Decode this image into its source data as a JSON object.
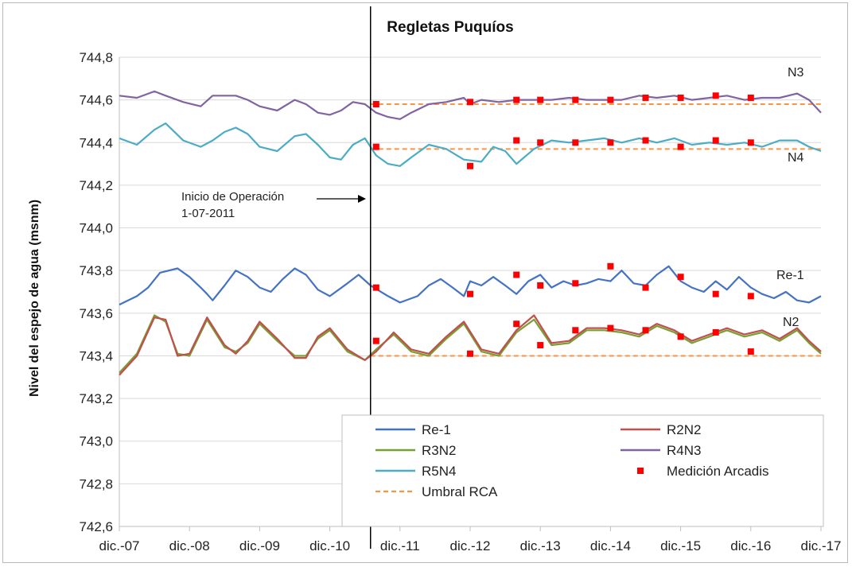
{
  "chart_data": {
    "type": "line",
    "title": "Regletas Puquíos",
    "ylabel": "Nivel del espejo de agua (msnm)",
    "xlabel": "",
    "ylim": [
      742.6,
      744.8
    ],
    "yticks": [
      "744,8",
      "744,6",
      "744,4",
      "744,2",
      "744,0",
      "743,8",
      "743,6",
      "743,4",
      "743,2",
      "743,0",
      "742,8",
      "742,6"
    ],
    "xlim": [
      2007.92,
      2017.92
    ],
    "xticks": [
      "dic.-07",
      "dic.-08",
      "dic.-09",
      "dic.-10",
      "dic.-11",
      "dic.-12",
      "dic.-13",
      "dic.-14",
      "dic.-15",
      "dic.-16",
      "dic.-17"
    ],
    "grid": "horizontal",
    "legend_position": "bottom-right",
    "annotation": {
      "text_line1": "Inicio de Operación",
      "text_line2": "1-07-2011",
      "x": 2011.5
    },
    "series_labels": [
      {
        "text": "N3",
        "series": "R4N3"
      },
      {
        "text": "N4",
        "series": "R5N4"
      },
      {
        "text": "Re-1",
        "series": "Re-1"
      },
      {
        "text": "N2",
        "series": "R2N2"
      }
    ],
    "series": [
      {
        "name": "Re-1",
        "color": "#4472C4",
        "style": "line",
        "x": [
          2007.92,
          2008.17,
          2008.33,
          2008.5,
          2008.75,
          2008.92,
          2009.08,
          2009.17,
          2009.25,
          2009.42,
          2009.58,
          2009.75,
          2009.92,
          2010.08,
          2010.25,
          2010.42,
          2010.58,
          2010.75,
          2010.92,
          2011.17,
          2011.33,
          2011.5,
          2011.75,
          2011.92,
          2012.17,
          2012.33,
          2012.5,
          2012.67,
          2012.83,
          2012.92,
          2013.08,
          2013.25,
          2013.42,
          2013.58,
          2013.75,
          2013.92,
          2014.08,
          2014.25,
          2014.42,
          2014.58,
          2014.75,
          2014.92,
          2015.08,
          2015.25,
          2015.42,
          2015.58,
          2015.75,
          2015.92,
          2016.08,
          2016.25,
          2016.42,
          2016.58,
          2016.75,
          2016.92,
          2017.08,
          2017.25,
          2017.42,
          2017.58,
          2017.75,
          2017.92
        ],
        "values": [
          743.64,
          743.68,
          743.72,
          743.79,
          743.81,
          743.77,
          743.72,
          743.69,
          743.66,
          743.73,
          743.8,
          743.77,
          743.72,
          743.7,
          743.76,
          743.81,
          743.78,
          743.71,
          743.68,
          743.74,
          743.78,
          743.73,
          743.68,
          743.65,
          743.68,
          743.73,
          743.76,
          743.72,
          743.68,
          743.75,
          743.73,
          743.77,
          743.73,
          743.69,
          743.75,
          743.78,
          743.72,
          743.75,
          743.73,
          743.74,
          743.76,
          743.75,
          743.8,
          743.74,
          743.73,
          743.78,
          743.82,
          743.75,
          743.72,
          743.7,
          743.75,
          743.71,
          743.77,
          743.72,
          743.69,
          743.67,
          743.7,
          743.66,
          743.65,
          743.68
        ]
      },
      {
        "name": "R2N2",
        "color": "#C0504D",
        "style": "line",
        "x": [
          2007.92,
          2008.17,
          2008.42,
          2008.58,
          2008.75,
          2008.92,
          2009.17,
          2009.42,
          2009.58,
          2009.75,
          2009.92,
          2010.17,
          2010.42,
          2010.58,
          2010.75,
          2010.92,
          2011.17,
          2011.42,
          2011.58,
          2011.83,
          2012.08,
          2012.33,
          2012.58,
          2012.83,
          2013.08,
          2013.33,
          2013.58,
          2013.83,
          2014.08,
          2014.33,
          2014.58,
          2014.83,
          2015.08,
          2015.33,
          2015.58,
          2015.83,
          2016.08,
          2016.33,
          2016.58,
          2016.83,
          2017.08,
          2017.33,
          2017.58,
          2017.75,
          2017.92
        ],
        "values": [
          743.31,
          743.4,
          743.58,
          743.57,
          743.4,
          743.41,
          743.58,
          743.45,
          743.41,
          743.47,
          743.56,
          743.48,
          743.39,
          743.39,
          743.49,
          743.53,
          743.43,
          743.38,
          743.42,
          743.51,
          743.43,
          743.41,
          743.49,
          743.56,
          743.43,
          743.41,
          743.52,
          743.59,
          743.46,
          743.47,
          743.53,
          743.53,
          743.52,
          743.5,
          743.55,
          743.52,
          743.47,
          743.5,
          743.53,
          743.5,
          743.52,
          743.48,
          743.53,
          743.47,
          743.42
        ]
      },
      {
        "name": "R3N2",
        "color": "#77A033",
        "style": "line",
        "x": [
          2007.92,
          2008.17,
          2008.42,
          2008.58,
          2008.75,
          2008.92,
          2009.17,
          2009.42,
          2009.58,
          2009.75,
          2009.92,
          2010.17,
          2010.42,
          2010.58,
          2010.75,
          2010.92,
          2011.17,
          2011.42,
          2011.58,
          2011.83,
          2012.08,
          2012.33,
          2012.58,
          2012.83,
          2013.08,
          2013.33,
          2013.58,
          2013.83,
          2014.08,
          2014.33,
          2014.58,
          2014.83,
          2015.08,
          2015.33,
          2015.58,
          2015.83,
          2016.08,
          2016.33,
          2016.58,
          2016.83,
          2017.08,
          2017.33,
          2017.58,
          2017.75,
          2017.92
        ],
        "values": [
          743.32,
          743.41,
          743.59,
          743.56,
          743.41,
          743.4,
          743.57,
          743.44,
          743.42,
          743.46,
          743.55,
          743.47,
          743.4,
          743.4,
          743.48,
          743.52,
          743.42,
          743.38,
          743.43,
          743.5,
          743.42,
          743.4,
          743.48,
          743.55,
          743.42,
          743.4,
          743.51,
          743.57,
          743.45,
          743.46,
          743.52,
          743.52,
          743.51,
          743.49,
          743.54,
          743.51,
          743.46,
          743.49,
          743.52,
          743.49,
          743.51,
          743.47,
          743.52,
          743.46,
          743.41
        ]
      },
      {
        "name": "R4N3",
        "color": "#8064A2",
        "style": "line",
        "x": [
          2007.92,
          2008.17,
          2008.42,
          2008.58,
          2008.83,
          2009.08,
          2009.25,
          2009.42,
          2009.58,
          2009.75,
          2009.92,
          2010.17,
          2010.42,
          2010.58,
          2010.75,
          2010.92,
          2011.08,
          2011.25,
          2011.42,
          2011.58,
          2011.75,
          2011.92,
          2012.08,
          2012.33,
          2012.58,
          2012.83,
          2012.92,
          2013.08,
          2013.33,
          2013.58,
          2013.83,
          2014.08,
          2014.33,
          2014.58,
          2014.83,
          2015.08,
          2015.33,
          2015.58,
          2015.83,
          2016.08,
          2016.33,
          2016.58,
          2016.83,
          2017.08,
          2017.33,
          2017.58,
          2017.75,
          2017.92
        ],
        "values": [
          744.62,
          744.61,
          744.64,
          744.62,
          744.59,
          744.57,
          744.62,
          744.62,
          744.62,
          744.6,
          744.57,
          744.55,
          744.6,
          744.58,
          744.54,
          744.53,
          744.55,
          744.59,
          744.58,
          744.54,
          744.52,
          744.51,
          744.54,
          744.58,
          744.59,
          744.61,
          744.58,
          744.6,
          744.59,
          744.6,
          744.6,
          744.6,
          744.61,
          744.6,
          744.6,
          744.6,
          744.62,
          744.61,
          744.62,
          744.6,
          744.61,
          744.62,
          744.6,
          744.61,
          744.61,
          744.63,
          744.6,
          744.54
        ]
      },
      {
        "name": "R5N4",
        "color": "#4BACC6",
        "style": "line",
        "x": [
          2007.92,
          2008.17,
          2008.42,
          2008.58,
          2008.83,
          2009.08,
          2009.25,
          2009.42,
          2009.58,
          2009.75,
          2009.92,
          2010.17,
          2010.42,
          2010.58,
          2010.75,
          2010.92,
          2011.08,
          2011.25,
          2011.42,
          2011.58,
          2011.75,
          2011.92,
          2012.08,
          2012.33,
          2012.58,
          2012.83,
          2013.08,
          2013.25,
          2013.42,
          2013.58,
          2013.83,
          2014.08,
          2014.33,
          2014.58,
          2014.83,
          2015.08,
          2015.33,
          2015.58,
          2015.83,
          2016.08,
          2016.33,
          2016.58,
          2016.83,
          2017.08,
          2017.33,
          2017.58,
          2017.75,
          2017.92
        ],
        "values": [
          744.42,
          744.39,
          744.46,
          744.49,
          744.41,
          744.38,
          744.41,
          744.45,
          744.47,
          744.44,
          744.38,
          744.36,
          744.43,
          744.44,
          744.39,
          744.33,
          744.32,
          744.39,
          744.42,
          744.34,
          744.3,
          744.29,
          744.33,
          744.39,
          744.37,
          744.32,
          744.31,
          744.38,
          744.36,
          744.3,
          744.37,
          744.41,
          744.4,
          744.41,
          744.42,
          744.4,
          744.42,
          744.4,
          744.42,
          744.39,
          744.4,
          744.39,
          744.4,
          744.38,
          744.41,
          744.41,
          744.38,
          744.36
        ]
      },
      {
        "name": "Medición Arcadis",
        "color": "#FF0000",
        "style": "marker",
        "points": [
          {
            "x": 2011.58,
            "y": 744.58
          },
          {
            "x": 2011.58,
            "y": 744.38
          },
          {
            "x": 2011.58,
            "y": 743.72
          },
          {
            "x": 2011.58,
            "y": 743.47
          },
          {
            "x": 2012.92,
            "y": 744.59
          },
          {
            "x": 2012.92,
            "y": 744.29
          },
          {
            "x": 2012.92,
            "y": 743.69
          },
          {
            "x": 2012.92,
            "y": 743.41
          },
          {
            "x": 2013.58,
            "y": 744.6
          },
          {
            "x": 2013.58,
            "y": 744.41
          },
          {
            "x": 2013.58,
            "y": 743.78
          },
          {
            "x": 2013.58,
            "y": 743.55
          },
          {
            "x": 2013.92,
            "y": 744.6
          },
          {
            "x": 2013.92,
            "y": 744.4
          },
          {
            "x": 2013.92,
            "y": 743.73
          },
          {
            "x": 2013.92,
            "y": 743.45
          },
          {
            "x": 2014.42,
            "y": 744.6
          },
          {
            "x": 2014.42,
            "y": 744.4
          },
          {
            "x": 2014.42,
            "y": 743.74
          },
          {
            "x": 2014.42,
            "y": 743.52
          },
          {
            "x": 2014.92,
            "y": 744.6
          },
          {
            "x": 2014.92,
            "y": 744.4
          },
          {
            "x": 2014.92,
            "y": 743.82
          },
          {
            "x": 2014.92,
            "y": 743.53
          },
          {
            "x": 2015.42,
            "y": 744.61
          },
          {
            "x": 2015.42,
            "y": 744.41
          },
          {
            "x": 2015.42,
            "y": 743.72
          },
          {
            "x": 2015.42,
            "y": 743.52
          },
          {
            "x": 2015.92,
            "y": 744.61
          },
          {
            "x": 2015.92,
            "y": 744.38
          },
          {
            "x": 2015.92,
            "y": 743.77
          },
          {
            "x": 2015.92,
            "y": 743.49
          },
          {
            "x": 2016.42,
            "y": 744.62
          },
          {
            "x": 2016.42,
            "y": 744.41
          },
          {
            "x": 2016.42,
            "y": 743.69
          },
          {
            "x": 2016.42,
            "y": 743.51
          },
          {
            "x": 2016.92,
            "y": 744.61
          },
          {
            "x": 2016.92,
            "y": 744.4
          },
          {
            "x": 2016.92,
            "y": 743.68
          },
          {
            "x": 2016.92,
            "y": 743.42
          }
        ]
      },
      {
        "name": "Umbral RCA",
        "color": "#F79646",
        "style": "dashed",
        "segments": [
          {
            "x0": 2011.5,
            "x1": 2017.92,
            "y": 744.58
          },
          {
            "x0": 2011.5,
            "x1": 2017.92,
            "y": 744.37
          },
          {
            "x0": 2011.5,
            "x1": 2017.92,
            "y": 743.4
          }
        ]
      }
    ]
  }
}
